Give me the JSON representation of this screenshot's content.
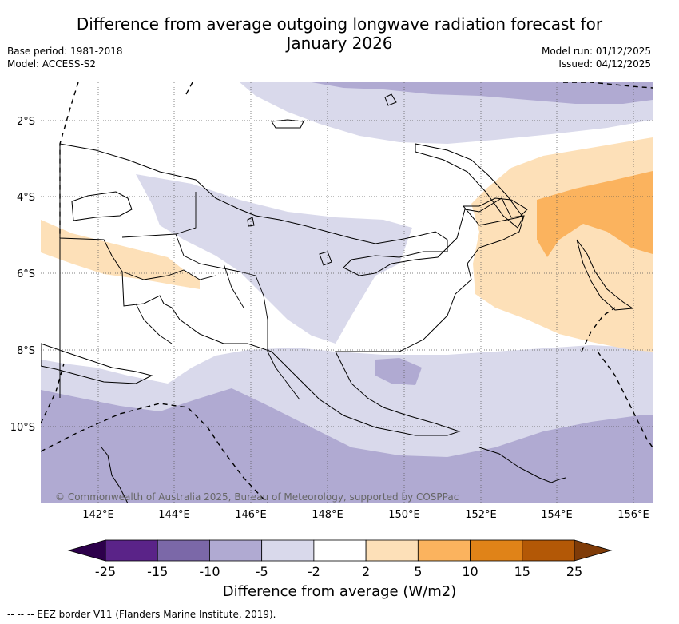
{
  "title": {
    "line1": "Difference from average outgoing longwave radiation forecast for",
    "line2": "January 2026"
  },
  "meta": {
    "base_period": "Base period: 1981-2018",
    "model": "Model: ACCESS-S2",
    "model_run": "Model run: 01/12/2025",
    "issued": "Issued: 04/12/2025"
  },
  "map": {
    "lat_labels": [
      "2°S",
      "4°S",
      "6°S",
      "8°S",
      "10°S"
    ],
    "lon_labels": [
      "142°E",
      "144°E",
      "146°E",
      "148°E",
      "150°E",
      "152°E",
      "154°E",
      "156°E"
    ],
    "copyright": "© Commonwealth of Australia 2025, Bureau of Meteorology, supported by COSPPac"
  },
  "colorbar": {
    "ticks": [
      "-25",
      "-15",
      "-10",
      "-5",
      "-2",
      "2",
      "5",
      "10",
      "15",
      "25"
    ],
    "colors": [
      "#5a2388",
      "#7b68a8",
      "#b0aad2",
      "#d9d9eb",
      "#ffffff",
      "#fde0b8",
      "#fbb35e",
      "#e08318",
      "#b35806"
    ],
    "under_color": "#2d004b",
    "over_color": "#7f3b08",
    "label": "Difference from average (W/m2)"
  },
  "footer": "-- -- -- EEZ border V11 (Flanders Marine Institute, 2019)."
}
